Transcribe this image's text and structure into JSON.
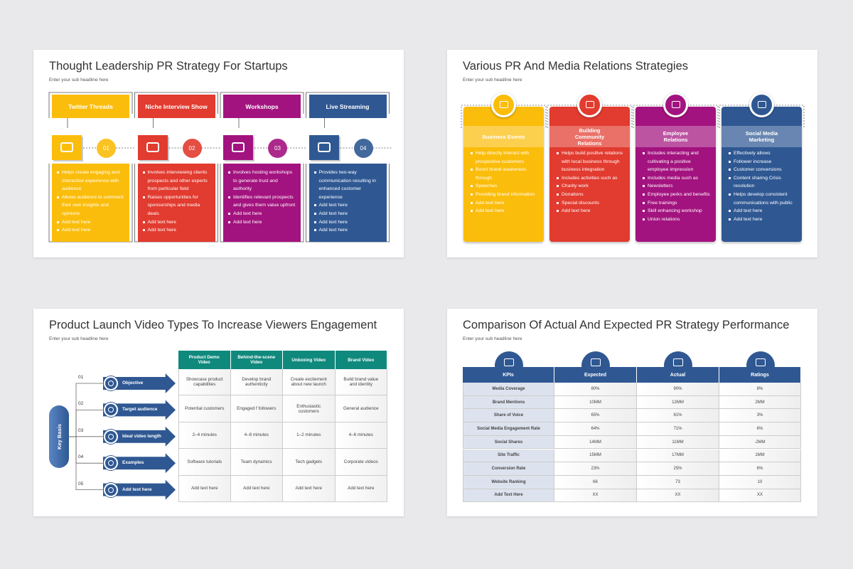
{
  "slides": [
    {
      "title": "Thought Leadership PR Strategy For Startups",
      "subtitle": "Enter your sub headline here",
      "columns": [
        {
          "heading": "Twitter Threads",
          "number": "01",
          "bullets": [
            "Helps create engaging and interactive experience with audience",
            "Allows audience to comment their own insights and opinions",
            "Add text here",
            "Add text here"
          ]
        },
        {
          "heading": "Niche Interview Show",
          "number": "02",
          "bullets": [
            "Involves interviewing clients prospects and other experts from particular field",
            "Raises opportunities for sponsorships and media deals",
            "Add text here",
            "Add text here"
          ]
        },
        {
          "heading": "Workshops",
          "number": "03",
          "bullets": [
            "Involves hosting workshops to generate trust and authority",
            "Identifies relevant prospects and gives them value upfront",
            "Add text here",
            "Add text here"
          ]
        },
        {
          "heading": "Live Streaming",
          "number": "04",
          "bullets": [
            "Provides two-way communication resulting in enhanced customer experience",
            "Add text here",
            "Add text here",
            "Add text here",
            "Add text here"
          ]
        }
      ]
    },
    {
      "title": "Various PR And Media Relations Strategies",
      "subtitle": "Enter your sub headline here",
      "columns": [
        {
          "heading": "Business Events",
          "bullets": [
            "Help directly interact with prospective customers",
            "Boost brand awareness through",
            "Speeches",
            "Providing brand information",
            "Add text here",
            "Add text here"
          ]
        },
        {
          "heading": "Building Community Relations",
          "bullets": [
            "Helps build positive relations with local business through business integration",
            "Includes activities such as",
            "Charity work",
            "Donations",
            "Special discounts",
            "Add text here"
          ]
        },
        {
          "heading": "Employee Relations",
          "bullets": [
            "Includes interacting and cultivating a positive employee impression",
            "Includes media such as",
            "Newsletters",
            "Employee perks and benefits",
            "Free trainings",
            "Skill enhancing workshop",
            "Union relations"
          ]
        },
        {
          "heading": "Social Media Marketing",
          "bullets": [
            "Effectively allows",
            "Follower increase",
            "Customer conversions",
            "Content sharing Crisis resolution",
            "Helps develop consistent communications with public",
            "Add text here",
            "Add text here"
          ]
        }
      ]
    },
    {
      "title": "Product Launch Video Types To Increase Viewers Engagement",
      "subtitle": "Enter your sub headline here",
      "key_label": "Key Basis",
      "rows": [
        {
          "number": "01",
          "label": "Objective"
        },
        {
          "number": "02",
          "label": "Target audience"
        },
        {
          "number": "03",
          "label": "Ideal video length"
        },
        {
          "number": "04",
          "label": "Examples"
        },
        {
          "number": "05",
          "label": "Add text here"
        }
      ],
      "table": {
        "headers": [
          "Product Demo Video",
          "Behind-the-scene Video",
          "Unboxing Video",
          "Brand Video"
        ],
        "rows": [
          [
            "Showcase product capabilities",
            "Develop brand authenticity",
            "Create excitement about new launch",
            "Build brand value and identity"
          ],
          [
            "Potential customers",
            "Engaged f followers",
            "Enthusiastic customers",
            "General audience"
          ],
          [
            "2–4 minutes",
            "4–8 minutes",
            "1–2 minutes",
            "4–6 minutes"
          ],
          [
            "Software tutorials",
            "Team dynamics",
            "Tech gadgets",
            "Corporate videos"
          ],
          [
            "Add text here",
            "Add text here",
            "Add text here",
            "Add text here"
          ]
        ]
      }
    },
    {
      "title": "Comparison Of Actual And Expected PR Strategy Performance",
      "subtitle": "Enter your sub headline here",
      "table": {
        "headers": [
          "KPIs",
          "Expected",
          "Actual",
          "Ratings"
        ],
        "rows": [
          [
            "Media Coverage",
            "80%",
            "90%",
            "8%"
          ],
          [
            "Brand Mentions",
            "10MM",
            "12MM",
            "2MM"
          ],
          [
            "Share of Voice",
            "65%",
            "61%",
            "3%"
          ],
          [
            "Social Media Engagement Rate",
            "64%",
            "71%",
            "6%"
          ],
          [
            "Social Shares",
            "14MM",
            "11MM",
            "-2MM"
          ],
          [
            "Site Traffic",
            "15MM",
            "17MM",
            "1MM"
          ],
          [
            "Conversion Rate",
            "23%",
            "25%",
            "6%"
          ],
          [
            "Website Ranking",
            "66",
            "73",
            "10"
          ],
          [
            "Add Text Here",
            "XX",
            "XX",
            "XX"
          ]
        ]
      }
    }
  ]
}
